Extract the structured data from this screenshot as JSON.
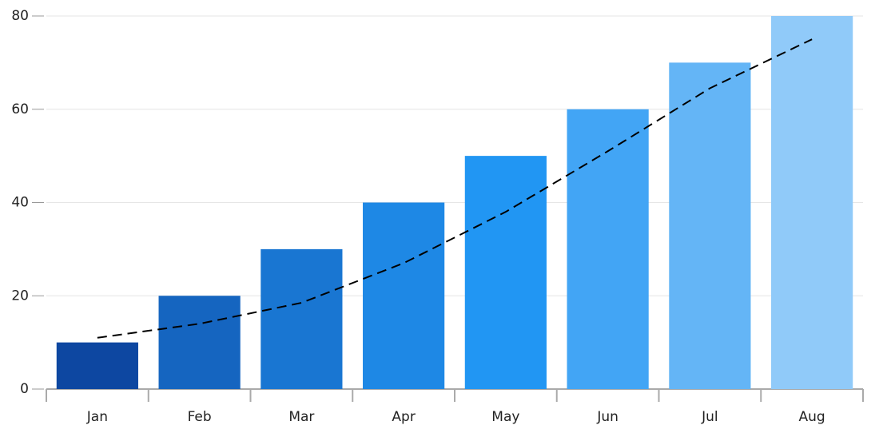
{
  "chart_data": {
    "type": "bar",
    "categories": [
      "Jan",
      "Feb",
      "Mar",
      "Apr",
      "May",
      "Jun",
      "Jul",
      "Aug"
    ],
    "series": [
      {
        "type": "bar",
        "values": [
          10,
          20,
          30,
          40,
          50,
          60,
          70,
          80
        ],
        "colors": [
          "#0d47a1",
          "#1565c0",
          "#1976d2",
          "#1e88e5",
          "#2196f3",
          "#42a5f5",
          "#64b5f6",
          "#90caf9"
        ]
      },
      {
        "type": "line",
        "dashed": true,
        "color": "#000000",
        "values": [
          11,
          14,
          18.5,
          27,
          38,
          51,
          64.5,
          75
        ]
      }
    ],
    "ylim": [
      0,
      80
    ],
    "yticks": [
      0,
      20,
      40,
      60,
      80
    ],
    "grid": true
  }
}
